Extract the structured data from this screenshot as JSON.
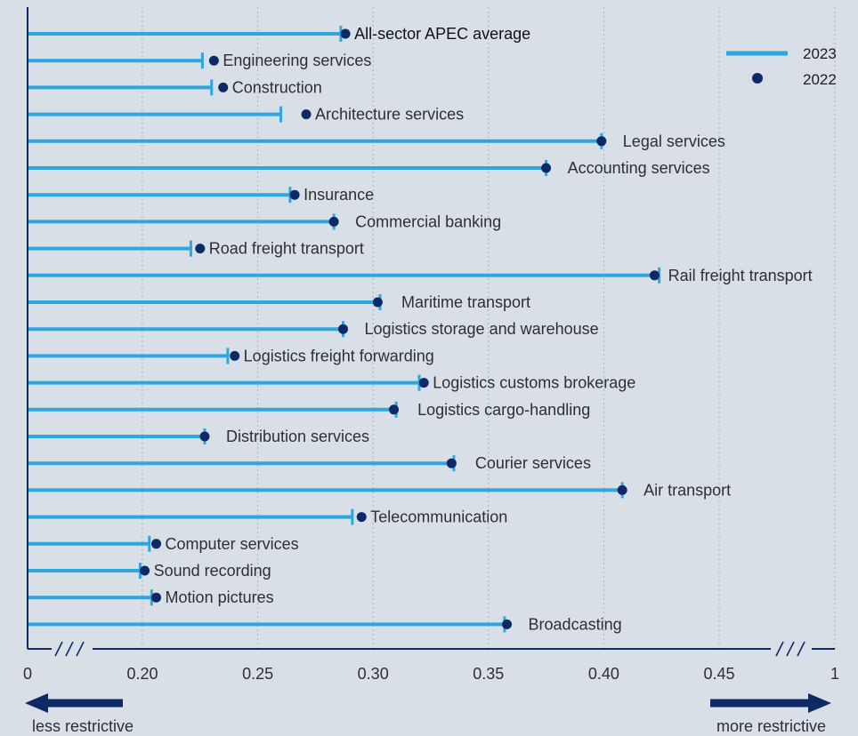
{
  "chart_data": {
    "type": "dumbbell",
    "colors": {
      "bar_2023": "#2ea6df",
      "dot_2022": "#0d2a66",
      "axis": "#0d2a66",
      "grid": "#a8b0b8",
      "highlight": "#111111"
    },
    "legend": {
      "items": [
        {
          "name": "2023",
          "symbol": "line"
        },
        {
          "name": "2022",
          "symbol": "dot"
        }
      ],
      "placement": "top-right"
    },
    "x_axis": {
      "ticks": [
        "0",
        "0.20",
        "0.25",
        "0.30",
        "0.35",
        "0.40",
        "0.45",
        "1"
      ],
      "broken": true,
      "range": [
        0.2,
        0.45
      ]
    },
    "direction_labels": {
      "left": "less restrictive",
      "right": "more restrictive"
    },
    "grid": true,
    "categories": [
      {
        "label": "All-sector APEC average",
        "v2023": 0.286,
        "v2022": 0.288,
        "highlight": true
      },
      {
        "label": "Engineering services",
        "v2023": 0.226,
        "v2022": 0.231
      },
      {
        "label": "Construction",
        "v2023": 0.23,
        "v2022": 0.235
      },
      {
        "label": "Architecture services",
        "v2023": 0.26,
        "v2022": 0.271
      },
      {
        "label": "Legal services",
        "v2023": 0.399,
        "v2022": 0.399
      },
      {
        "label": "Accounting services",
        "v2023": 0.375,
        "v2022": 0.375
      },
      {
        "label": "Insurance",
        "v2023": 0.264,
        "v2022": 0.266
      },
      {
        "label": "Commercial banking",
        "v2023": 0.283,
        "v2022": 0.283
      },
      {
        "label": "Road freight transport",
        "v2023": 0.221,
        "v2022": 0.225
      },
      {
        "label": "Rail freight transport",
        "v2023": 0.424,
        "v2022": 0.422
      },
      {
        "label": "Maritime transport",
        "v2023": 0.303,
        "v2022": 0.302
      },
      {
        "label": "Logistics storage and warehouse",
        "v2023": 0.287,
        "v2022": 0.287
      },
      {
        "label": "Logistics freight forwarding",
        "v2023": 0.237,
        "v2022": 0.24
      },
      {
        "label": "Logistics customs brokerage",
        "v2023": 0.32,
        "v2022": 0.322
      },
      {
        "label": "Logistics cargo-handling",
        "v2023": 0.31,
        "v2022": 0.309
      },
      {
        "label": "Distribution services",
        "v2023": 0.227,
        "v2022": 0.227
      },
      {
        "label": "Courier services",
        "v2023": 0.335,
        "v2022": 0.334
      },
      {
        "label": "Air transport",
        "v2023": 0.408,
        "v2022": 0.408
      },
      {
        "label": "Telecommunication",
        "v2023": 0.291,
        "v2022": 0.295
      },
      {
        "label": "Computer services",
        "v2023": 0.203,
        "v2022": 0.206
      },
      {
        "label": "Sound recording",
        "v2023": 0.199,
        "v2022": 0.201
      },
      {
        "label": "Motion pictures",
        "v2023": 0.204,
        "v2022": 0.206
      },
      {
        "label": "Broadcasting",
        "v2023": 0.357,
        "v2022": 0.358
      }
    ]
  }
}
